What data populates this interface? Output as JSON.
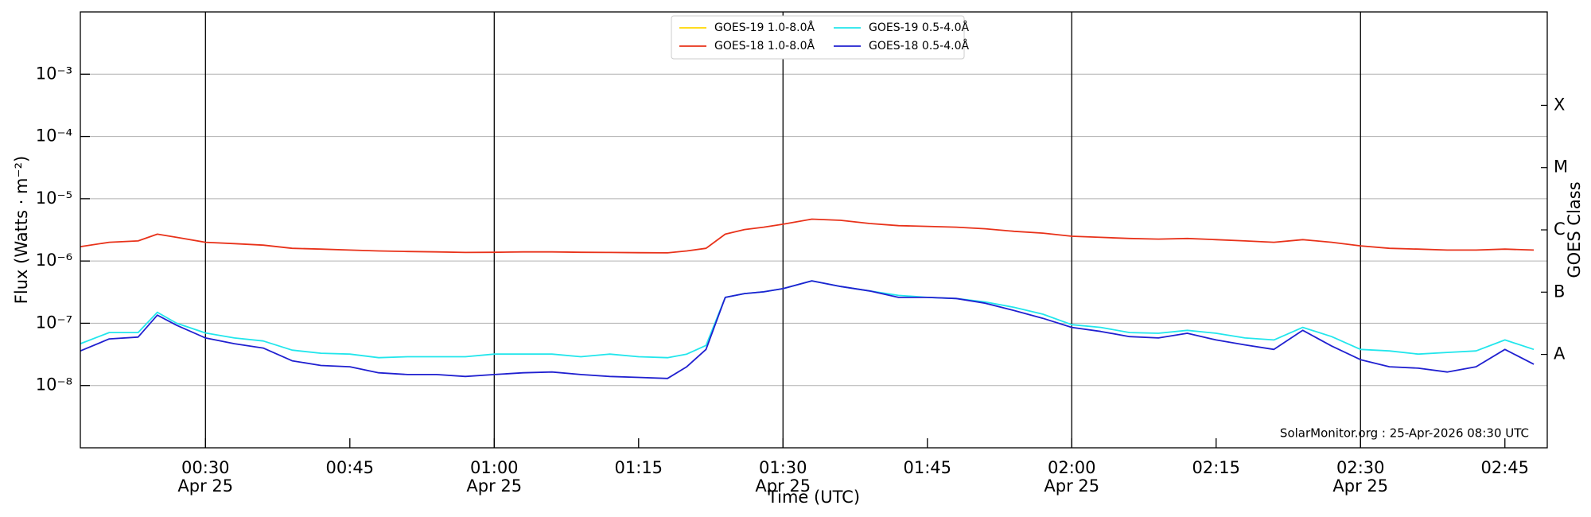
{
  "chart_data": {
    "type": "line",
    "y_label": "Flux (Watts · m⁻²)",
    "x_label": "Time (UTC)",
    "y2_label": "GOES Class",
    "annotation": "SolarMonitor.org : 25-Apr-2026 08:30 UTC",
    "yscale": "log",
    "grid": true,
    "legend": "upper center",
    "xlim": [
      17,
      169.4
    ],
    "ylim": [
      1e-09,
      0.01
    ],
    "y2lim": [
      1e-09,
      0.01
    ],
    "xticks": [
      {
        "value": 30,
        "label": "00:30\nApr 25"
      },
      {
        "value": 45,
        "label": "00:45"
      },
      {
        "value": 60,
        "label": "01:00\nApr 25"
      },
      {
        "value": 75,
        "label": "01:15"
      },
      {
        "value": 90,
        "label": "01:30\nApr 25"
      },
      {
        "value": 105,
        "label": "01:45"
      },
      {
        "value": 120,
        "label": "02:00\nApr 25"
      },
      {
        "value": 135,
        "label": "02:15"
      },
      {
        "value": 150,
        "label": "02:30\nApr 25"
      },
      {
        "value": 165,
        "label": "02:45"
      }
    ],
    "yticks": [
      {
        "value": 1e-08,
        "label": "10⁻⁸"
      },
      {
        "value": 1e-07,
        "label": "10⁻⁷"
      },
      {
        "value": 1e-06,
        "label": "10⁻⁶"
      },
      {
        "value": 1e-05,
        "label": "10⁻⁵"
      },
      {
        "value": 0.0001,
        "label": "10⁻⁴"
      },
      {
        "value": 0.001,
        "label": "10⁻³"
      }
    ],
    "y2ticks": [
      {
        "value": 3.162e-08,
        "label": "A"
      },
      {
        "value": 3.162e-07,
        "label": "B"
      },
      {
        "value": 3.162e-06,
        "label": "C"
      },
      {
        "value": 3.162e-05,
        "label": "M"
      },
      {
        "value": 0.0003162,
        "label": "X"
      }
    ],
    "x": [
      17,
      20,
      23,
      25,
      27,
      30,
      33,
      36,
      39,
      42,
      45,
      48,
      51,
      54,
      57,
      60,
      63,
      66,
      69,
      72,
      75,
      78,
      80,
      82,
      84,
      86,
      88,
      90,
      93,
      96,
      99,
      102,
      105,
      108,
      111,
      114,
      117,
      120,
      123,
      126,
      129,
      132,
      135,
      138,
      141,
      144,
      147,
      150,
      153,
      156,
      159,
      162,
      165,
      168
    ],
    "series": [
      {
        "name": "GOES-19 1.0-8.0Å",
        "color": "#ffd700",
        "values": [
          null,
          null,
          null,
          null,
          null,
          null,
          null,
          null,
          null,
          null,
          null,
          null,
          null,
          null,
          null,
          null,
          null,
          null,
          null,
          null,
          null,
          null,
          null,
          null,
          null,
          null,
          null,
          null,
          null,
          null,
          null,
          null,
          null,
          null,
          null,
          null,
          null,
          null,
          null,
          null,
          null,
          null,
          null,
          null,
          null,
          null,
          null,
          null,
          null,
          null,
          null,
          null,
          null,
          null
        ]
      },
      {
        "name": "GOES-18 1.0-8.0Å",
        "color": "#e8321a",
        "values": [
          1.7e-06,
          2e-06,
          2.1e-06,
          2.7e-06,
          2.4e-06,
          2e-06,
          1.9e-06,
          1.8e-06,
          1.6e-06,
          1.55e-06,
          1.5e-06,
          1.45e-06,
          1.42e-06,
          1.4e-06,
          1.37e-06,
          1.38e-06,
          1.4e-06,
          1.4e-06,
          1.38e-06,
          1.37e-06,
          1.36e-06,
          1.35e-06,
          1.45e-06,
          1.6e-06,
          2.7e-06,
          3.2e-06,
          3.5e-06,
          3.9e-06,
          4.7e-06,
          4.5e-06,
          4e-06,
          3.7e-06,
          3.6e-06,
          3.5e-06,
          3.3e-06,
          3e-06,
          2.8e-06,
          2.5e-06,
          2.4e-06,
          2.3e-06,
          2.25e-06,
          2.3e-06,
          2.2e-06,
          2.1e-06,
          2e-06,
          2.2e-06,
          2e-06,
          1.75e-06,
          1.6e-06,
          1.55e-06,
          1.5e-06,
          1.5e-06,
          1.55e-06,
          1.5e-06
        ]
      },
      {
        "name": "GOES-19 0.5-4.0Å",
        "color": "#22e6ec",
        "values": [
          4.7e-08,
          7.1e-08,
          7.1e-08,
          1.5e-07,
          1e-07,
          7e-08,
          5.8e-08,
          5.2e-08,
          3.7e-08,
          3.3e-08,
          3.2e-08,
          2.8e-08,
          2.9e-08,
          2.9e-08,
          2.9e-08,
          3.2e-08,
          3.2e-08,
          3.2e-08,
          2.9e-08,
          3.2e-08,
          2.9e-08,
          2.8e-08,
          3.2e-08,
          4.4e-08,
          2.6e-07,
          3e-07,
          3.2e-07,
          3.6e-07,
          4.8e-07,
          3.9e-07,
          3.3e-07,
          2.8e-07,
          2.6e-07,
          2.5e-07,
          2.2e-07,
          1.8e-07,
          1.4e-07,
          9.5e-08,
          8.6e-08,
          7.1e-08,
          6.9e-08,
          7.7e-08,
          6.9e-08,
          5.8e-08,
          5.4e-08,
          8.6e-08,
          6.1e-08,
          3.8e-08,
          3.6e-08,
          3.2e-08,
          3.4e-08,
          3.6e-08,
          5.4e-08,
          3.8e-08
        ]
      },
      {
        "name": "GOES-18 0.5-4.0Å",
        "color": "#2020d0",
        "values": [
          3.6e-08,
          5.6e-08,
          6e-08,
          1.35e-07,
          9.3e-08,
          5.8e-08,
          4.7e-08,
          4e-08,
          2.5e-08,
          2.1e-08,
          2e-08,
          1.6e-08,
          1.5e-08,
          1.5e-08,
          1.4e-08,
          1.5e-08,
          1.6e-08,
          1.65e-08,
          1.5e-08,
          1.4e-08,
          1.35e-08,
          1.3e-08,
          2e-08,
          3.8e-08,
          2.6e-07,
          3e-07,
          3.2e-07,
          3.6e-07,
          4.8e-07,
          3.9e-07,
          3.3e-07,
          2.6e-07,
          2.6e-07,
          2.5e-07,
          2.1e-07,
          1.6e-07,
          1.2e-07,
          8.6e-08,
          7.4e-08,
          6.1e-08,
          5.8e-08,
          6.9e-08,
          5.4e-08,
          4.5e-08,
          3.8e-08,
          7.7e-08,
          4.3e-08,
          2.6e-08,
          2e-08,
          1.9e-08,
          1.65e-08,
          2e-08,
          3.8e-08,
          2.2e-08
        ]
      }
    ]
  }
}
